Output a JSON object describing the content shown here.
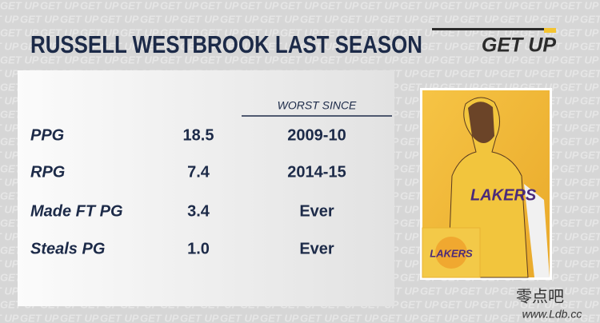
{
  "title": "RUSSELL WESTBROOK LAST SEASON",
  "logo": "GET UP",
  "table": {
    "header": "WORST SINCE",
    "rows": [
      [
        "PPG",
        "18.5",
        "2009-10"
      ],
      [
        "RPG",
        "7.4",
        "2014-15"
      ],
      [
        "Made FT PG",
        "3.4",
        "Ever"
      ],
      [
        "Steals PG",
        "1.0",
        "Ever"
      ]
    ]
  },
  "watermark": [
    "零点吧",
    "www.Ldb.cc"
  ]
}
